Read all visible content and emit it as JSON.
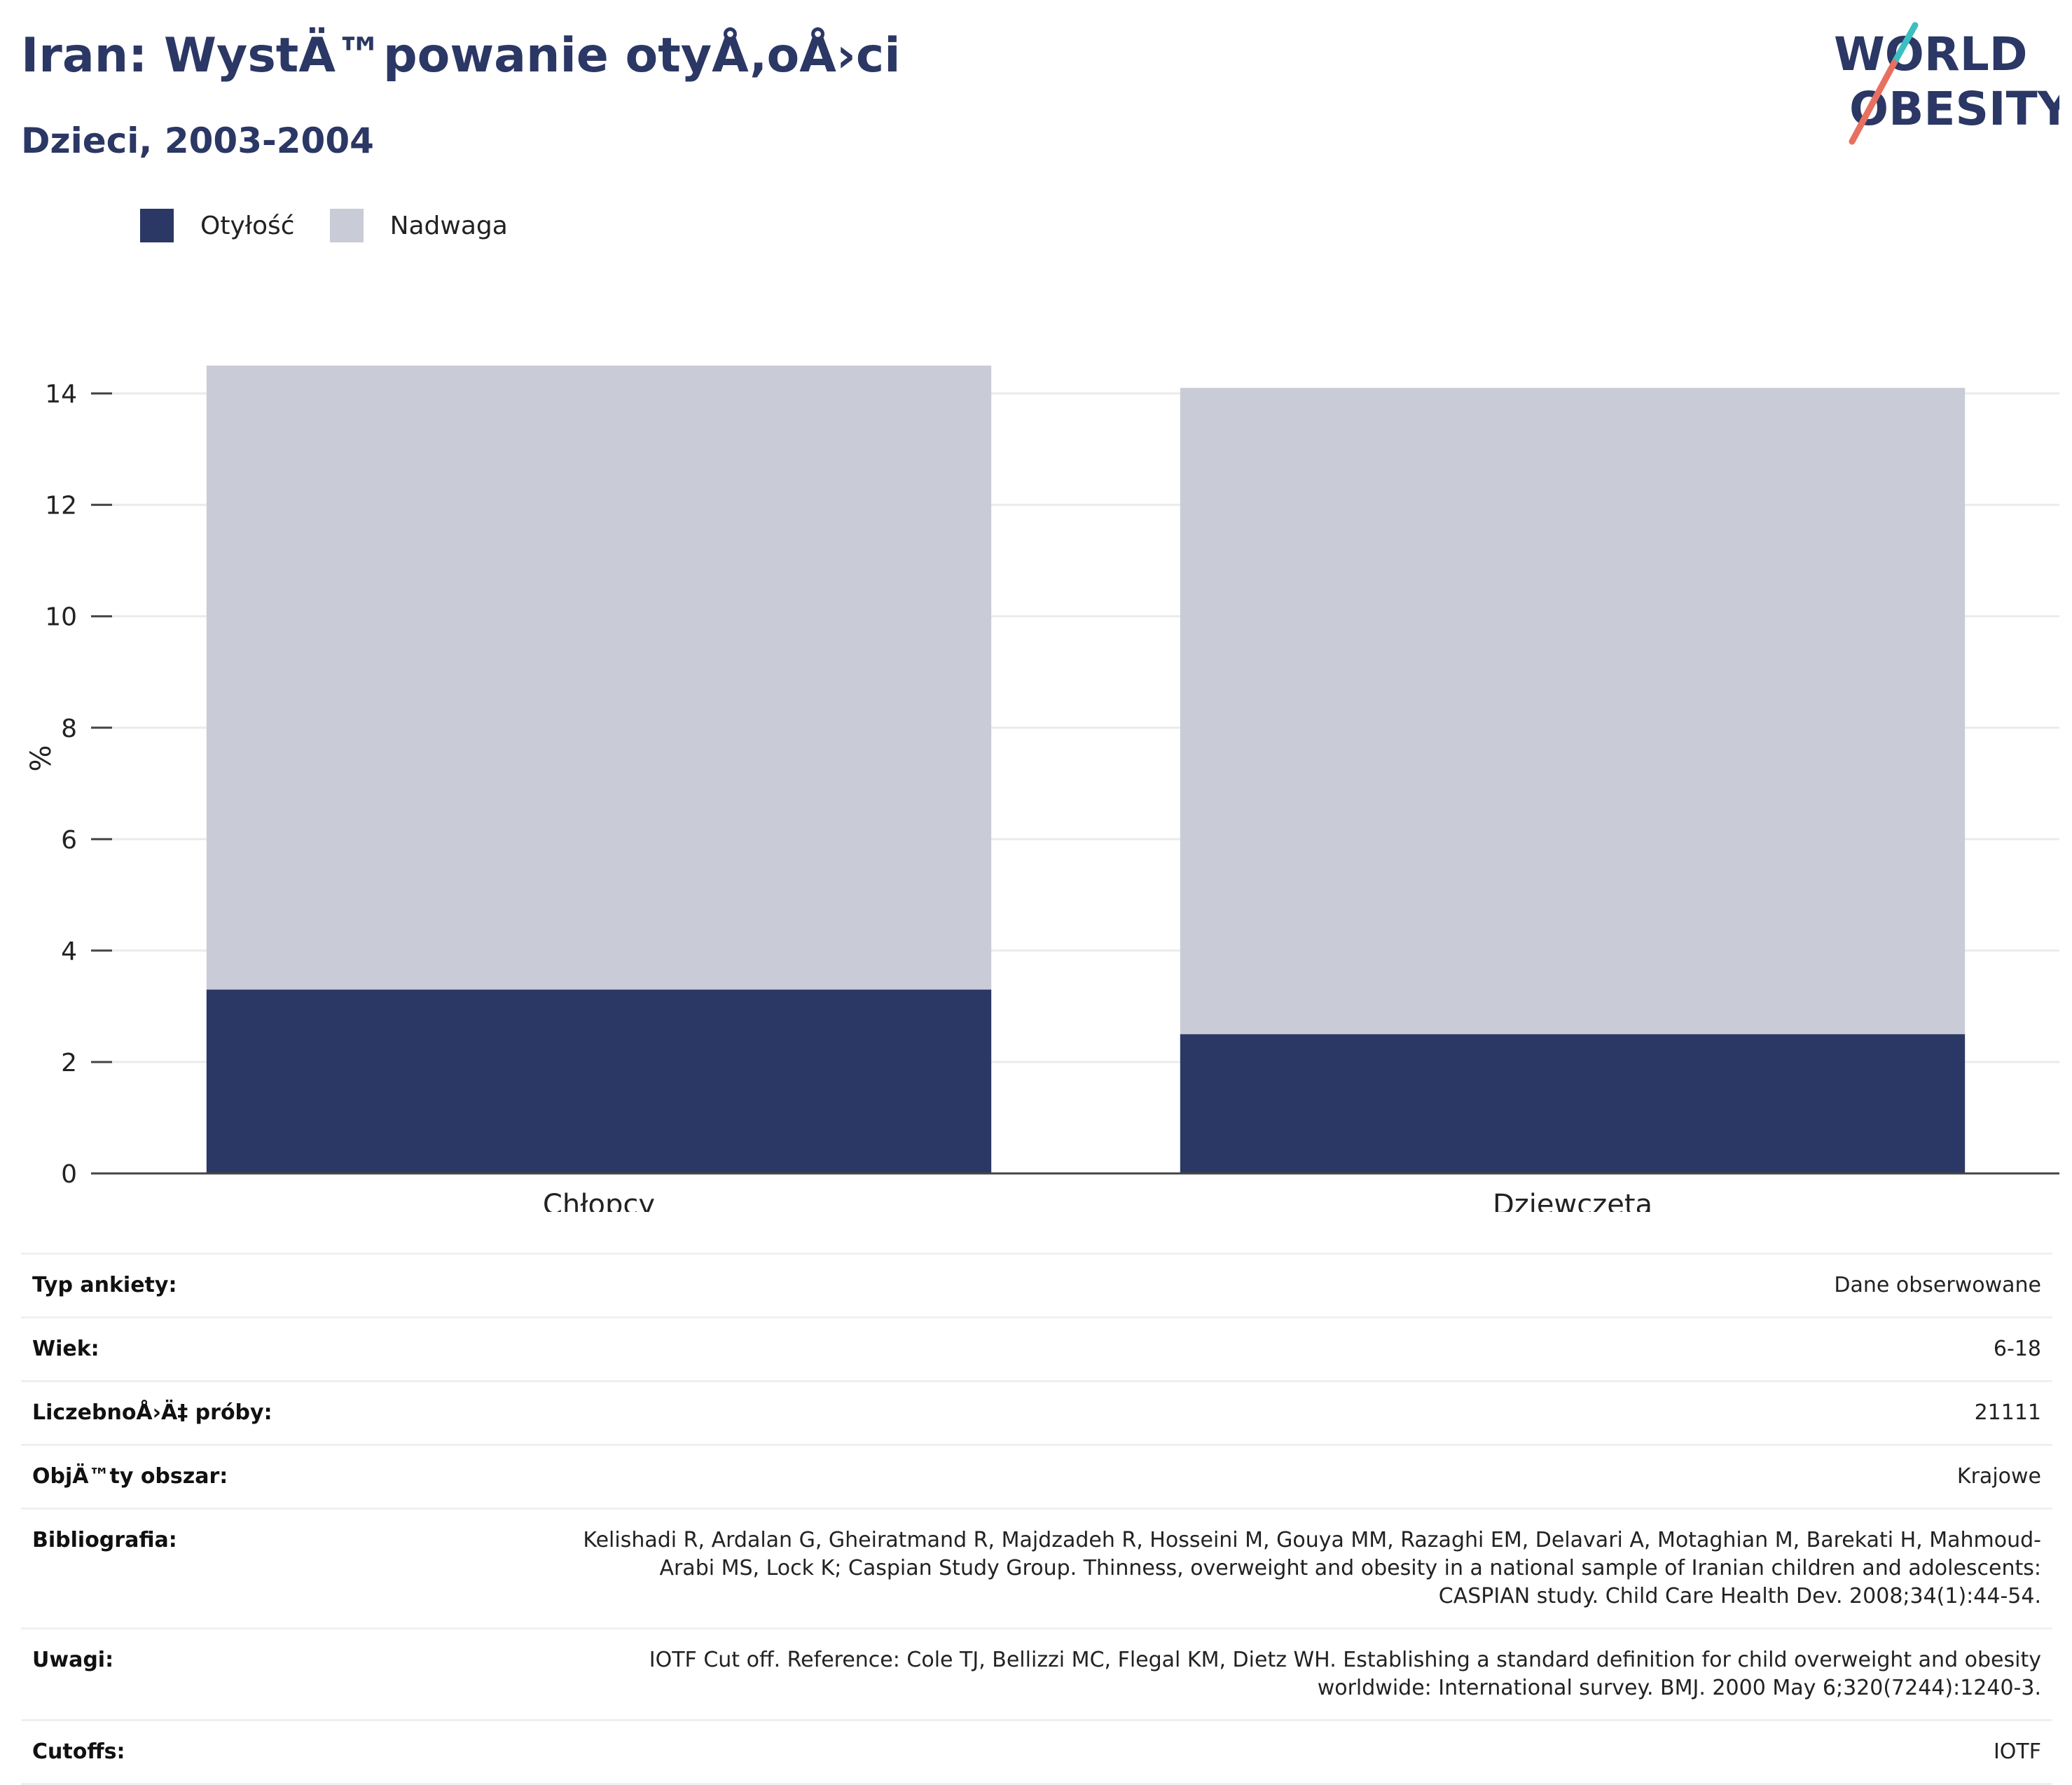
{
  "header": {
    "title": "Iran: WystÄ™powanie otyÅ‚oÅ›ci",
    "subtitle": "Dzieci, 2003-2004"
  },
  "logo": {
    "line1": "WORLD",
    "line2": "OBESITY"
  },
  "colors": {
    "obesity": "#2b3764",
    "overweight": "#c9ccd7",
    "title": "#2b3764",
    "logo_teal": "#3dbfc1",
    "logo_coral": "#e8705f"
  },
  "chart_data": {
    "type": "bar",
    "stacked": true,
    "categories": [
      "Chłopcy",
      "Dziewczęta"
    ],
    "series": [
      {
        "name": "Otyłość",
        "values": [
          3.3,
          2.5
        ]
      },
      {
        "name": "Nadwaga",
        "values": [
          11.2,
          11.6
        ]
      }
    ],
    "ylabel": "%",
    "ylim": [
      0,
      14.9
    ],
    "yticks": [
      0,
      2,
      4,
      6,
      8,
      10,
      12,
      14
    ],
    "grid": true,
    "legend": "top-left"
  },
  "meta": [
    {
      "label": "Typ ankiety:",
      "value": "Dane obserwowane"
    },
    {
      "label": "Wiek:",
      "value": "6-18"
    },
    {
      "label": "LiczebnoÅ›Ä‡ próby:",
      "value": "21111"
    },
    {
      "label": "ObjÄ™ty obszar:",
      "value": "Krajowe"
    },
    {
      "label": "Bibliografia:",
      "value": "Kelishadi R, Ardalan G, Gheiratmand R, Majdzadeh R, Hosseini M, Gouya MM, Razaghi EM, Delavari A, Motaghian M, Barekati H, Mahmoud-Arabi MS, Lock K; Caspian Study Group. Thinness, overweight and obesity in a national sample of Iranian children and adolescents: CASPIAN study. Child Care Health Dev. 2008;34(1):44-54."
    },
    {
      "label": "Uwagi:",
      "value": "IOTF Cut off. Reference: Cole TJ, Bellizzi MC, Flegal KM, Dietz WH. Establishing a standard definition for child overweight and obesity worldwide: International survey. BMJ. 2000 May 6;320(7244):1240-3."
    },
    {
      "label": "Cutoffs:",
      "value": "IOTF"
    }
  ]
}
